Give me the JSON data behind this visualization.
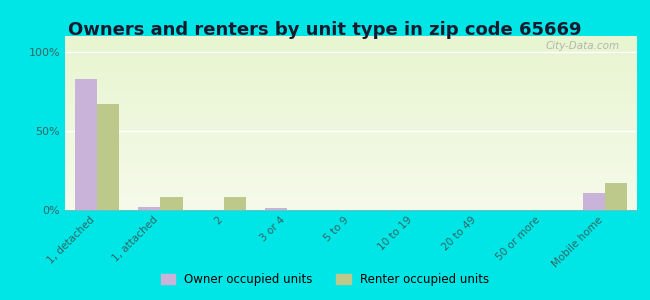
{
  "title": "Owners and renters by unit type in zip code 65669",
  "categories": [
    "1, detached",
    "1, attached",
    "2",
    "3 or 4",
    "5 to 9",
    "10 to 19",
    "20 to 49",
    "50 or more",
    "Mobile home"
  ],
  "owner_values": [
    83,
    2,
    0,
    1,
    0,
    0,
    0,
    0,
    11
  ],
  "renter_values": [
    67,
    8,
    8,
    0,
    0,
    0,
    0,
    0,
    17
  ],
  "owner_color": "#c9b3d9",
  "renter_color": "#bcc98a",
  "background_outer": "#00e5e5",
  "yticks": [
    0,
    50,
    100
  ],
  "ylabels": [
    "0%",
    "50%",
    "100%"
  ],
  "ylim": [
    0,
    110
  ],
  "legend_owner": "Owner occupied units",
  "legend_renter": "Renter occupied units",
  "bar_width": 0.35,
  "title_fontsize": 13,
  "tick_color": "#336666",
  "watermark": "City-Data.com"
}
